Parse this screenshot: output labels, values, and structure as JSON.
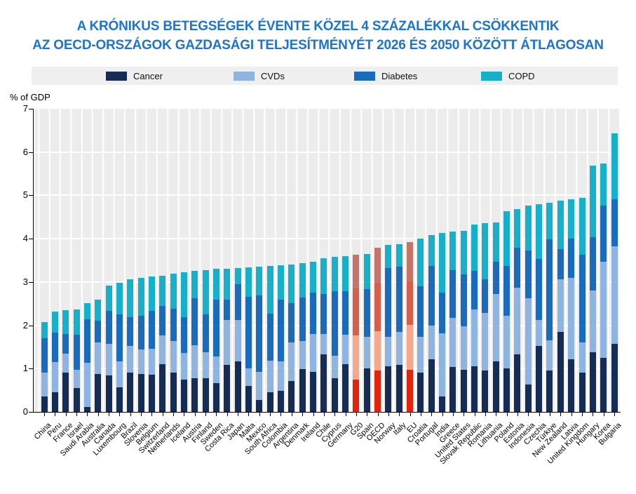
{
  "title": {
    "line1": "A KRÓNIKUS BETEGSÉGEK ÉVENTE KÖZEL 4 SZÁZALÉKKAL CSÖKKENTIK",
    "line2": "AZ OECD-ORSZÁGOK GAZDASÁGI TELJESÍTMÉNYÉT 2026 ÉS 2050 KÖZÖTT ÁTLAGOSAN"
  },
  "title_color": "#1b74cf",
  "y_axis_title": "% of GDP",
  "legend": {
    "items": [
      {
        "label": "Cancer",
        "color": "#152c55"
      },
      {
        "label": "CVDs",
        "color": "#8eb4e2"
      },
      {
        "label": "Diabetes",
        "color": "#1a6cba"
      },
      {
        "label": "COPD",
        "color": "#17b0c8"
      }
    ]
  },
  "chart_data": {
    "type": "bar",
    "stacked": true,
    "title": "A krónikus betegségek évente közel 4 százalékkal csökkentik az OECD-országok gazdasági teljesítményét 2026 és 2050 között átlagosan",
    "ylabel": "% of GDP",
    "xlabel": "",
    "ylim": [
      0,
      7
    ],
    "yticks": [
      0,
      1,
      2,
      3,
      4,
      5,
      6,
      7
    ],
    "grid": true,
    "legend_position": "top",
    "categories": [
      "China",
      "Peru",
      "France",
      "Israel",
      "Saudi Arabia",
      "Australia",
      "Canada",
      "Luxembourg",
      "Brazil",
      "Slovenia",
      "Belgium",
      "Switzerland",
      "Netherlands",
      "Iceland",
      "Austria",
      "Finland",
      "Sweden",
      "Costa Rica",
      "Japan",
      "Malta",
      "Mexico",
      "South Africa",
      "Colombia",
      "Argentina",
      "Denmark",
      "Ireland",
      "Chile",
      "Cyprus",
      "Germany",
      "G20",
      "Spain",
      "OECD",
      "Norway",
      "Italy",
      "EU",
      "Croatia",
      "Portugal",
      "India",
      "Greece",
      "United States",
      "Slovak Republic",
      "Romania",
      "Lithuania",
      "Poland",
      "Estonia",
      "Indonesia",
      "Czechia",
      "Türkiye",
      "New Zealand",
      "Latvia",
      "United Kingdom",
      "Hungary",
      "Korea",
      "Bulgaria"
    ],
    "series": [
      {
        "name": "Cancer",
        "values": [
          0.35,
          0.45,
          0.9,
          0.55,
          0.12,
          0.88,
          0.85,
          0.56,
          0.9,
          0.87,
          0.86,
          1.1,
          0.9,
          0.75,
          0.77,
          0.77,
          0.67,
          1.09,
          1.16,
          0.6,
          0.28,
          0.46,
          0.49,
          0.71,
          0.99,
          0.92,
          1.33,
          0.77,
          1.11,
          0.74,
          1.0,
          0.95,
          1.06,
          1.09,
          0.98,
          0.91,
          1.22,
          0.36,
          1.03,
          0.98,
          1.06,
          0.95,
          1.17,
          1.01,
          1.33,
          0.63,
          1.52,
          0.95,
          1.84,
          1.22,
          0.9,
          1.38,
          1.25,
          1.57
        ]
      },
      {
        "name": "CVDs",
        "values": [
          0.55,
          0.7,
          0.45,
          0.43,
          1.02,
          0.72,
          0.73,
          0.61,
          0.62,
          0.57,
          0.6,
          0.67,
          0.73,
          0.61,
          0.77,
          0.61,
          0.61,
          1.03,
          0.96,
          0.4,
          0.65,
          0.73,
          0.68,
          0.89,
          0.64,
          0.88,
          0.47,
          0.53,
          0.68,
          1.02,
          0.73,
          0.92,
          0.67,
          0.75,
          1.03,
          0.83,
          0.78,
          1.46,
          1.14,
          1.0,
          1.3,
          1.34,
          1.55,
          1.21,
          1.54,
          2.0,
          0.6,
          0.7,
          1.22,
          1.88,
          0.7,
          1.43,
          2.21,
          2.26
        ]
      },
      {
        "name": "Diabetes",
        "values": [
          0.8,
          0.68,
          0.45,
          0.8,
          1.0,
          0.5,
          0.76,
          1.08,
          0.67,
          0.78,
          0.87,
          0.68,
          0.75,
          0.83,
          1.09,
          0.87,
          1.32,
          0.48,
          0.83,
          1.65,
          1.76,
          1.08,
          1.43,
          0.92,
          1.01,
          0.96,
          0.92,
          1.49,
          1.0,
          1.1,
          1.11,
          1.12,
          1.6,
          1.51,
          1.0,
          1.16,
          1.37,
          0.93,
          1.1,
          1.19,
          0.9,
          0.77,
          0.74,
          1.15,
          0.93,
          1.1,
          1.41,
          2.33,
          0.7,
          0.91,
          2.03,
          1.22,
          1.3,
          1.08
        ]
      },
      {
        "name": "COPD",
        "values": [
          0.37,
          0.49,
          0.55,
          0.58,
          0.38,
          0.5,
          0.58,
          0.74,
          0.87,
          0.88,
          0.79,
          0.7,
          0.82,
          1.03,
          0.62,
          1.02,
          0.7,
          0.71,
          0.38,
          0.69,
          0.67,
          1.1,
          0.79,
          0.88,
          0.8,
          0.71,
          0.83,
          0.79,
          0.81,
          0.77,
          0.81,
          0.8,
          0.52,
          0.53,
          0.91,
          1.1,
          0.71,
          1.39,
          0.9,
          1.01,
          1.06,
          1.3,
          0.92,
          1.26,
          0.88,
          1.03,
          1.27,
          0.85,
          1.12,
          0.9,
          1.32,
          1.65,
          0.98,
          1.52
        ]
      }
    ],
    "palette": [
      "#152c55",
      "#8eb4e2",
      "#1a6cba",
      "#17b0c8"
    ],
    "highlighted_categories": [
      "G20",
      "OECD",
      "EU"
    ],
    "highlight_palette": [
      "#e0250c",
      "#f4a98f",
      "#d55f49",
      "#c47468"
    ],
    "plot_background": "#ececec",
    "gridline_color": "#ffffff"
  }
}
